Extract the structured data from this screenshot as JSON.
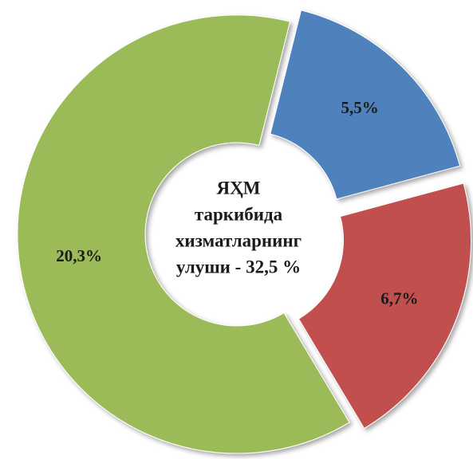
{
  "chart_data": {
    "type": "donut",
    "center_text": [
      "ЯҲМ",
      "таркибида",
      "хизматларнинг",
      "улуши - 32,5 %"
    ],
    "categories": [
      null,
      null,
      null
    ],
    "values": [
      5.5,
      6.7,
      20.3
    ],
    "value_labels": [
      "5,5%",
      "6,7%",
      "20,3%"
    ],
    "colors": [
      "#4f81bd",
      "#c0504d",
      "#9bbb59"
    ]
  }
}
